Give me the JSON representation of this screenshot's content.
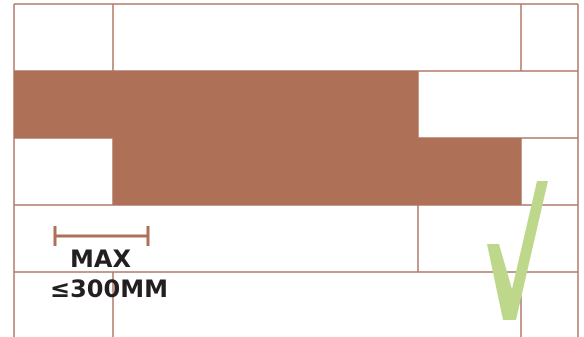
{
  "labels": {
    "max": "MAX",
    "limit": "≤300MM"
  },
  "colors": {
    "brick": "#ae7158",
    "outline": "#b07a68",
    "text": "#231f20",
    "check": "#bdd88b",
    "background": "#ffffff"
  },
  "icons": {
    "indicator": "check-mark-icon"
  }
}
